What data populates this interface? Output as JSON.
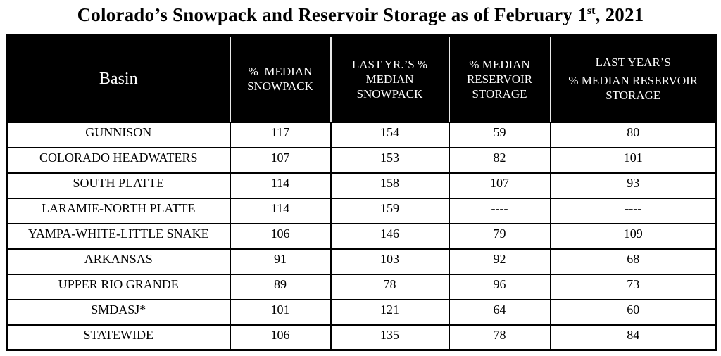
{
  "title": {
    "prefix": "Colorado’s Snowpack and Reservoir Storage as of February 1",
    "superscript": "st",
    "suffix": ", 2021"
  },
  "table": {
    "header": {
      "basin": "Basin",
      "snowpack": "%  MEDIAN\nSNOWPACK",
      "last_yr_snowpack": "LAST YR.’S %\nMEDIAN\nSNOWPACK",
      "reservoir": "% MEDIAN\nRESERVOIR\nSTORAGE",
      "last_yr_reservoir_line1": "LAST YEAR’S",
      "last_yr_reservoir_line2": "% MEDIAN RESERVOIR\nSTORAGE"
    },
    "rows": [
      {
        "basin": "GUNNISON",
        "snowpack": "117",
        "last_yr_snowpack": "154",
        "reservoir": "59",
        "last_yr_reservoir": "80"
      },
      {
        "basin": "COLORADO HEADWATERS",
        "snowpack": "107",
        "last_yr_snowpack": "153",
        "reservoir": "82",
        "last_yr_reservoir": "101"
      },
      {
        "basin": "SOUTH PLATTE",
        "snowpack": "114",
        "last_yr_snowpack": "158",
        "reservoir": "107",
        "last_yr_reservoir": "93"
      },
      {
        "basin": "LARAMIE-NORTH PLATTE",
        "snowpack": "114",
        "last_yr_snowpack": "159",
        "reservoir": "----",
        "last_yr_reservoir": "----"
      },
      {
        "basin": "YAMPA-WHITE-LITTLE SNAKE",
        "snowpack": "106",
        "last_yr_snowpack": "146",
        "reservoir": "79",
        "last_yr_reservoir": "109"
      },
      {
        "basin": "ARKANSAS",
        "snowpack": "91",
        "last_yr_snowpack": "103",
        "reservoir": "92",
        "last_yr_reservoir": "68"
      },
      {
        "basin": "UPPER RIO GRANDE",
        "snowpack": "89",
        "last_yr_snowpack": "78",
        "reservoir": "96",
        "last_yr_reservoir": "73"
      },
      {
        "basin": "SMDASJ*",
        "snowpack": "101",
        "last_yr_snowpack": "121",
        "reservoir": "64",
        "last_yr_reservoir": "60"
      },
      {
        "basin": "STATEWIDE",
        "snowpack": "106",
        "last_yr_snowpack": "135",
        "reservoir": "78",
        "last_yr_reservoir": "84"
      }
    ],
    "colors": {
      "header_bg": "#000000",
      "header_text": "#ffffff",
      "body_text": "#000000",
      "border": "#000000",
      "header_divider": "#e9e9e9"
    }
  }
}
